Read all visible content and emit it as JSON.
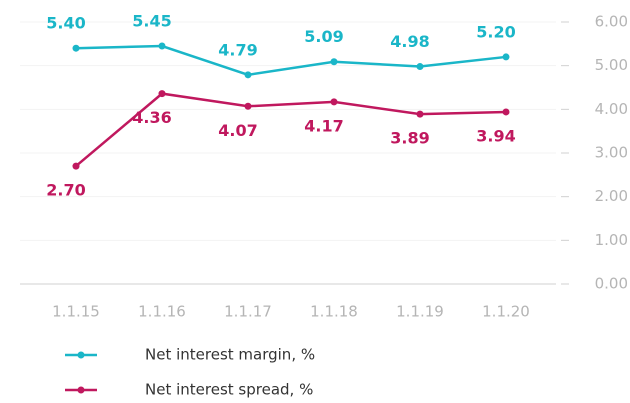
{
  "chart_data": {
    "type": "line",
    "categories": [
      "1.1.15",
      "1.1.16",
      "1.1.17",
      "1.1.18",
      "1.1.19",
      "1.1.20"
    ],
    "series": [
      {
        "name": "Net interest margin, %",
        "color": "#1ab6c8",
        "values": [
          5.4,
          5.45,
          4.79,
          5.09,
          4.98,
          5.2
        ],
        "value_labels": [
          "5.40",
          "5.45",
          "4.79",
          "5.09",
          "4.98",
          "5.20"
        ]
      },
      {
        "name": "Net interest spread, %",
        "color": "#c0185e",
        "values": [
          2.7,
          4.36,
          4.07,
          4.17,
          3.89,
          3.94
        ],
        "value_labels": [
          "2.70",
          "4.36",
          "4.07",
          "4.17",
          "3.89",
          "3.94"
        ]
      }
    ],
    "ylim": [
      0,
      6
    ],
    "yticks": [
      {
        "value": 0,
        "label": "0.00"
      },
      {
        "value": 1,
        "label": "1.00"
      },
      {
        "value": 2,
        "label": "2.00"
      },
      {
        "value": 3,
        "label": "3.00"
      },
      {
        "value": 4,
        "label": "4.00"
      },
      {
        "value": 5,
        "label": "5.00"
      },
      {
        "value": 6,
        "label": "6.00"
      }
    ],
    "grid": true,
    "legend": "bottom"
  }
}
